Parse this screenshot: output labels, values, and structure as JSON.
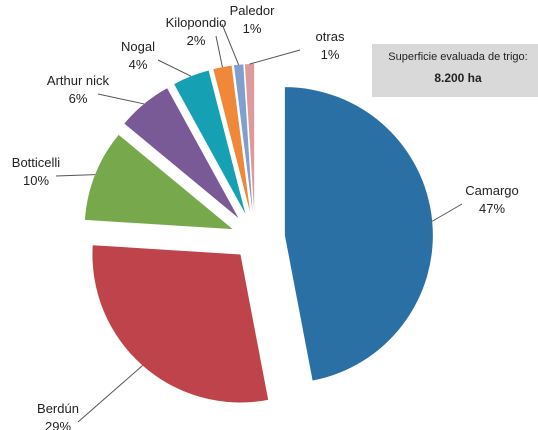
{
  "chart_data": {
    "type": "pie",
    "categories": [
      "Camargo",
      "Berdún",
      "Botticelli",
      "Arthur nick",
      "Nogal",
      "Kilopondio",
      "Paledor",
      "otras"
    ],
    "values": [
      47,
      29,
      10,
      6,
      4,
      2,
      1,
      1
    ],
    "value_labels": [
      "47%",
      "29%",
      "10%",
      "6%",
      "4%",
      "2%",
      "1%",
      "1%"
    ],
    "colors": [
      "#2a70a4",
      "#bf434b",
      "#78a84c",
      "#7a5997",
      "#16a0b4",
      "#f0883a",
      "#7f9fcf",
      "#dc9a9c"
    ],
    "annotation": {
      "title": "Superficie evaluada de trigo:",
      "text": "8.200 ha"
    }
  }
}
